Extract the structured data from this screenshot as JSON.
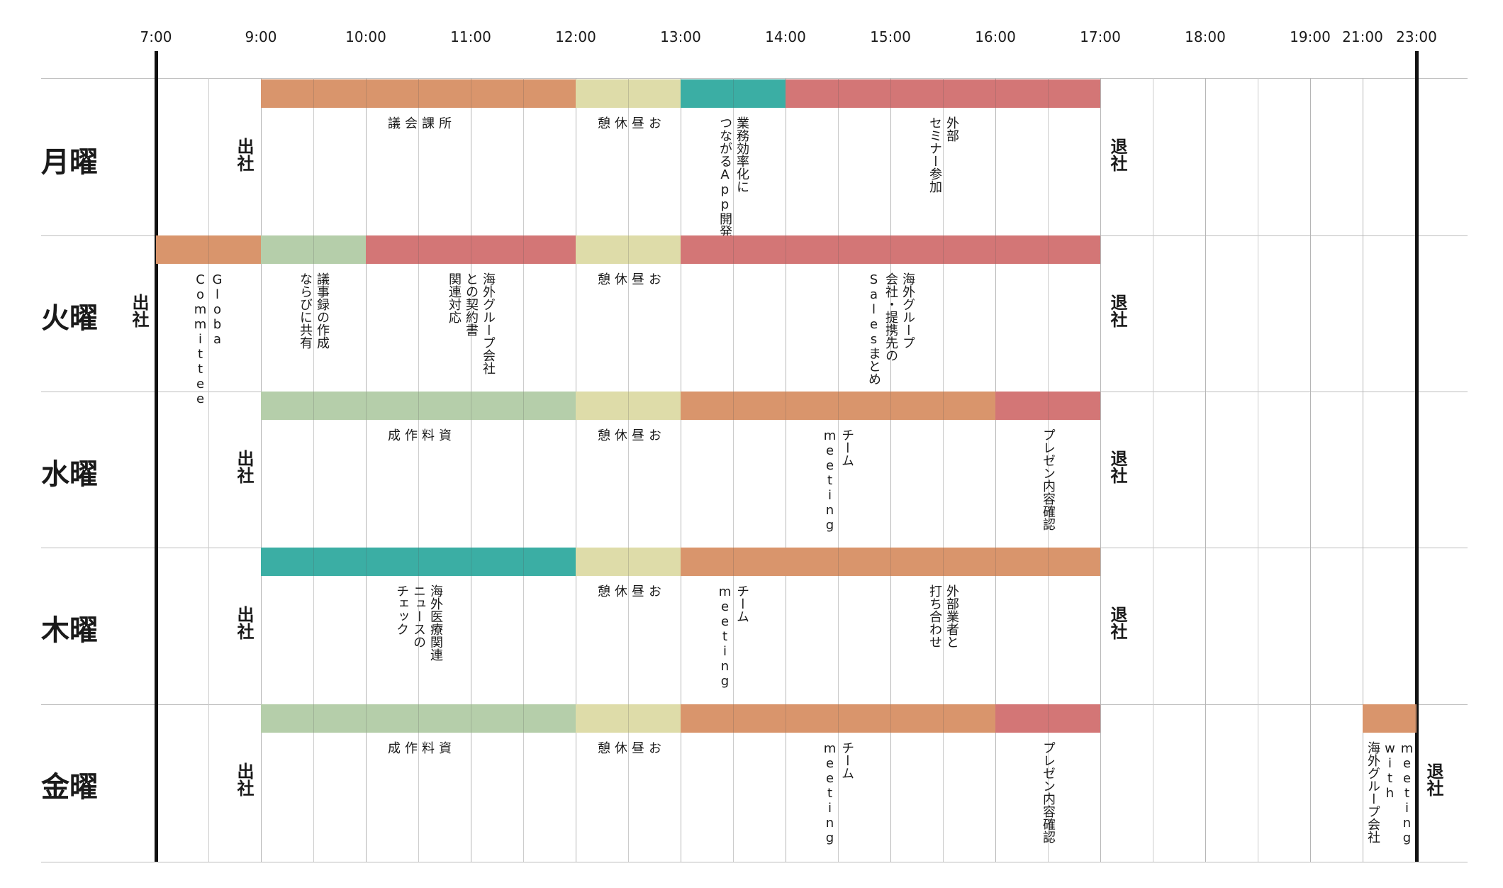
{
  "colors": {
    "orange": "#d9956c",
    "green": "#b5ceaa",
    "yellow": "#dedca9",
    "teal": "#3baea4",
    "red": "#d37676",
    "gridline": "#cccccc",
    "axis": "#111111"
  },
  "time_labels": [
    "7:00",
    "9:00",
    "10:00",
    "11:00",
    "12:00",
    "13:00",
    "14:00",
    "15:00",
    "16:00",
    "17:00",
    "18:00",
    "19:00",
    "21:00",
    "23:00"
  ],
  "days": [
    {
      "label": "月曜",
      "arrive": "出社",
      "leave": "退社",
      "events": [
        {
          "start": "9:00",
          "end": "12:00",
          "color": "orange",
          "label": "所\n課\n会\n議"
        },
        {
          "start": "12:00",
          "end": "13:00",
          "color": "yellow",
          "label": "お\n昼\n休\n憩"
        },
        {
          "start": "13:00",
          "end": "14:00",
          "color": "teal",
          "label": "業務効率化に\nつながるApp開発"
        },
        {
          "start": "14:00",
          "end": "17:00",
          "color": "red",
          "label": "外部\nセミナー参加"
        }
      ]
    },
    {
      "label": "火曜",
      "arrive": "出社",
      "leave": "退社",
      "events": [
        {
          "start": "7:00",
          "end": "9:00",
          "color": "orange",
          "label": "Globa\nCommittee"
        },
        {
          "start": "9:00",
          "end": "10:00",
          "color": "green",
          "label": "議事録の作成\nならびに共有"
        },
        {
          "start": "10:00",
          "end": "12:00",
          "color": "red",
          "label": "海外グループ会社\nとの契約書\n関連対応"
        },
        {
          "start": "12:00",
          "end": "13:00",
          "color": "yellow",
          "label": "お\n昼\n休\n憩"
        },
        {
          "start": "13:00",
          "end": "17:00",
          "color": "red",
          "label": "海外グループ\n会社・提携先の\nSalesまとめ"
        }
      ]
    },
    {
      "label": "水曜",
      "arrive": "出社",
      "leave": "退社",
      "events": [
        {
          "start": "9:00",
          "end": "12:00",
          "color": "green",
          "label": "資\n料\n作\n成"
        },
        {
          "start": "12:00",
          "end": "13:00",
          "color": "yellow",
          "label": "お\n昼\n休\n憩"
        },
        {
          "start": "13:00",
          "end": "16:00",
          "color": "orange",
          "label": "チーム\nmeeting"
        },
        {
          "start": "16:00",
          "end": "17:00",
          "color": "red",
          "label": "プレゼン内容確認"
        }
      ]
    },
    {
      "label": "木曜",
      "arrive": "出社",
      "leave": "退社",
      "events": [
        {
          "start": "9:00",
          "end": "12:00",
          "color": "teal",
          "label": "海外医療関連\nニュースの\nチェック"
        },
        {
          "start": "12:00",
          "end": "13:00",
          "color": "yellow",
          "label": "お\n昼\n休\n憩"
        },
        {
          "start": "13:00",
          "end": "14:00",
          "color": "orange",
          "label": "チーム\nmeeting"
        },
        {
          "start": "14:00",
          "end": "17:00",
          "color": "orange",
          "label": "外部業者と\n打ち合わせ"
        }
      ]
    },
    {
      "label": "金曜",
      "arrive": "出社",
      "leave": "退社",
      "events": [
        {
          "start": "9:00",
          "end": "12:00",
          "color": "green",
          "label": "資\n料\n作\n成"
        },
        {
          "start": "12:00",
          "end": "13:00",
          "color": "yellow",
          "label": "お\n昼\n休\n憩"
        },
        {
          "start": "13:00",
          "end": "16:00",
          "color": "orange",
          "label": "チーム\nmeeting"
        },
        {
          "start": "16:00",
          "end": "17:00",
          "color": "red",
          "label": "プレゼン内容確認"
        },
        {
          "start": "21:00",
          "end": "23:00",
          "color": "orange",
          "label": "meeting\nwith\n海外グループ会社"
        }
      ]
    }
  ]
}
